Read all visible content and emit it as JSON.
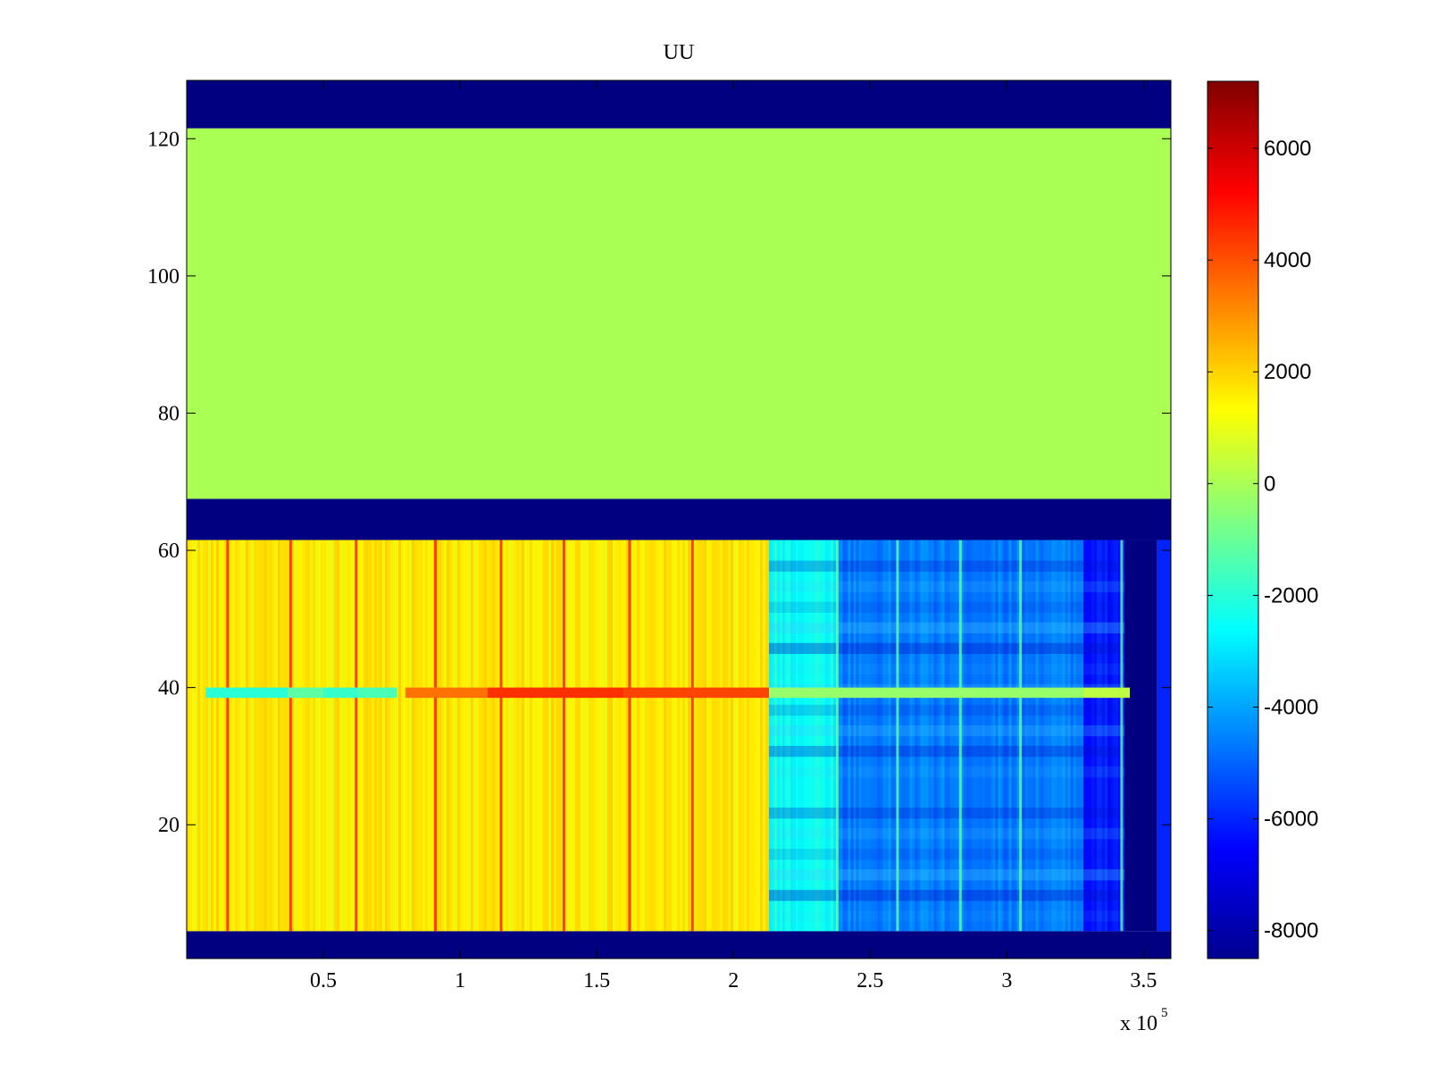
{
  "chart_data": {
    "type": "heatmap",
    "title": "UU",
    "xlabel": "",
    "ylabel": "",
    "x_multiplier_label": "x 10",
    "x_multiplier_exponent": "5",
    "xlim": [
      0,
      3.6
    ],
    "ylim": [
      0.5,
      128.5
    ],
    "x_ticks": [
      0.5,
      1,
      1.5,
      2,
      2.5,
      3,
      3.5
    ],
    "x_tick_labels": [
      "0.5",
      "1",
      "1.5",
      "2",
      "2.5",
      "3",
      "3.5"
    ],
    "y_ticks": [
      20,
      40,
      60,
      80,
      100,
      120
    ],
    "y_tick_labels": [
      "20",
      "40",
      "60",
      "80",
      "100",
      "120"
    ],
    "colormap": "jet",
    "clim": [
      -8500,
      7200
    ],
    "colorbar_ticks": [
      6000,
      4000,
      2000,
      0,
      -2000,
      -4000,
      -6000,
      -8000
    ],
    "colorbar_tick_labels": [
      "6000",
      "4000",
      "2000",
      "0",
      "-2000",
      "-4000",
      "-6000",
      "-8000"
    ],
    "regions": [
      {
        "name": "top-empty",
        "x": [
          0,
          3.6
        ],
        "y": [
          121.5,
          128.5
        ],
        "value": -8500
      },
      {
        "name": "upper-flat",
        "x": [
          0,
          3.6
        ],
        "y": [
          67.5,
          121.5
        ],
        "value": 0
      },
      {
        "name": "middle-empty",
        "x": [
          0,
          3.6
        ],
        "y": [
          61.5,
          67.5
        ],
        "value": -8500
      },
      {
        "name": "bottom-empty",
        "x": [
          0,
          3.6
        ],
        "y": [
          0.5,
          4.5
        ],
        "value": -8500
      },
      {
        "name": "lower-high",
        "x": [
          0,
          2.13
        ],
        "y": [
          4.5,
          61.5
        ],
        "value": 1600
      },
      {
        "name": "lower-transition",
        "x": [
          2.13,
          2.38
        ],
        "y": [
          4.5,
          61.5
        ],
        "value": -2400
      },
      {
        "name": "lower-mid",
        "x": [
          2.38,
          3.28
        ],
        "y": [
          4.5,
          61.5
        ],
        "value": -4600
      },
      {
        "name": "lower-low",
        "x": [
          3.28,
          3.43
        ],
        "y": [
          4.5,
          61.5
        ],
        "value": -6200
      },
      {
        "name": "gap",
        "x": [
          3.43,
          3.55
        ],
        "y": [
          4.5,
          61.5
        ],
        "value": -8500
      },
      {
        "name": "edge-strip",
        "x": [
          3.55,
          3.6
        ],
        "y": [
          4.5,
          61.5
        ],
        "value": -6000
      }
    ],
    "row_39_band": [
      {
        "x": [
          0.07,
          0.37
        ],
        "value": -2000
      },
      {
        "x": [
          0.37,
          0.5
        ],
        "value": -1200
      },
      {
        "x": [
          0.5,
          0.63
        ],
        "value": -1800
      },
      {
        "x": [
          0.63,
          0.77
        ],
        "value": -1500
      },
      {
        "x": [
          0.8,
          1.1
        ],
        "value": 3500
      },
      {
        "x": [
          1.1,
          1.6
        ],
        "value": 4500
      },
      {
        "x": [
          1.6,
          2.13
        ],
        "value": 4200
      },
      {
        "x": [
          2.13,
          3.28
        ],
        "value": -300
      },
      {
        "x": [
          3.28,
          3.45
        ],
        "value": 300
      }
    ],
    "hot_columns_x": [
      0.15,
      0.38,
      0.62,
      0.91,
      1.15,
      1.38,
      1.62,
      1.85
    ],
    "bright_columns_x": [
      2.38,
      2.6,
      2.83,
      3.05,
      3.42
    ]
  }
}
